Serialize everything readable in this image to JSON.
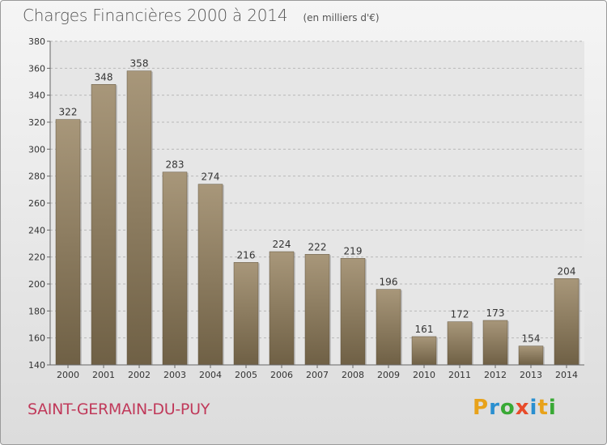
{
  "chart_data": {
    "type": "bar",
    "title": "Charges Financières 2000 à 2014",
    "subtitle": "(en milliers d'€)",
    "categories": [
      "2000",
      "2001",
      "2002",
      "2003",
      "2004",
      "2005",
      "2006",
      "2007",
      "2008",
      "2009",
      "2010",
      "2011",
      "2012",
      "2013",
      "2014"
    ],
    "values": [
      322,
      348,
      358,
      283,
      274,
      216,
      224,
      222,
      219,
      196,
      161,
      172,
      173,
      154,
      204
    ],
    "ylim": [
      140,
      380
    ],
    "yticks": [
      140,
      160,
      180,
      200,
      220,
      240,
      260,
      280,
      300,
      320,
      340,
      360,
      380
    ],
    "grid": true,
    "bar_color": "#8c7b5f"
  },
  "footer": {
    "city": "SAINT-GERMAIN-DU-PUY",
    "brand": [
      "P",
      "r",
      "o",
      "x",
      "i",
      "t",
      "i"
    ],
    "brand_colors": [
      "#e8a21a",
      "#2a8fd0",
      "#39a935",
      "#e84b2a",
      "#2a8fd0",
      "#e8a21a",
      "#39a935"
    ]
  }
}
